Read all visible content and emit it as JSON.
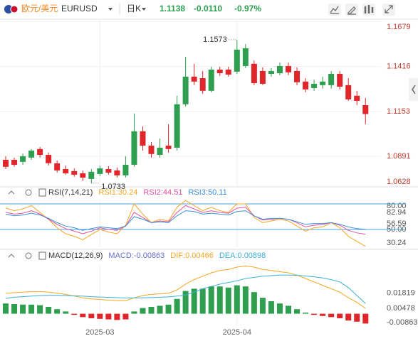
{
  "header": {
    "symbol_cn": "欧元/美元",
    "symbol": "EURUSD",
    "period": "日K",
    "price": "1.1138",
    "change": "-0.0110",
    "change_pct": "-0.97%"
  },
  "chart_data": [
    {
      "type": "candlestick",
      "up_color": "#2e9e4f",
      "down_color": "#e0262a",
      "tick_color": "#c0392b",
      "grid": true,
      "open": [
        1.087,
        1.087,
        1.0858,
        1.0883,
        1.0933,
        1.0899,
        1.085,
        1.0816,
        1.0804,
        1.0791,
        1.0758,
        1.0787,
        1.0816,
        1.0808,
        1.0779,
        1.0841,
        1.1037,
        1.0953,
        1.0899,
        1.0953,
        1.0941,
        1.1195,
        1.1357,
        1.1348,
        1.1274,
        1.1398,
        1.1398,
        1.1386,
        1.1419,
        1.1432,
        1.139,
        1.1373,
        1.1377,
        1.1419,
        1.139,
        1.1328,
        1.129,
        1.1307,
        1.1307,
        1.1373,
        1.1307,
        1.1245,
        1.119
      ],
      "high": [
        1.0891,
        1.0883,
        1.0908,
        1.0933,
        1.0945,
        1.0912,
        1.0866,
        1.0837,
        1.082,
        1.0808,
        1.0816,
        1.0837,
        1.0833,
        1.0825,
        1.0891,
        1.1141,
        1.1066,
        1.0974,
        1.0995,
        1.1078,
        1.1245,
        1.1473,
        1.1432,
        1.139,
        1.1415,
        1.1415,
        1.1415,
        1.1573,
        1.1548,
        1.1452,
        1.1411,
        1.1407,
        1.144,
        1.144,
        1.1411,
        1.1348,
        1.134,
        1.1357,
        1.139,
        1.139,
        1.1348,
        1.1274,
        1.1232
      ],
      "low": [
        1.0816,
        1.0829,
        1.0841,
        1.087,
        1.0883,
        1.0837,
        1.0795,
        1.0783,
        1.0771,
        1.0746,
        1.0733,
        1.0775,
        1.0783,
        1.0766,
        1.0766,
        1.0829,
        1.0924,
        1.0883,
        1.0883,
        1.0912,
        1.0924,
        1.1182,
        1.1307,
        1.1257,
        1.1265,
        1.1361,
        1.1357,
        1.1373,
        1.1407,
        1.1307,
        1.1307,
        1.1357,
        1.1365,
        1.1365,
        1.1307,
        1.1265,
        1.1274,
        1.1286,
        1.1286,
        1.1282,
        1.1215,
        1.119,
        1.1078
      ],
      "close": [
        1.0829,
        1.0841,
        1.0891,
        1.0924,
        1.0899,
        1.085,
        1.0808,
        1.0791,
        1.0783,
        1.0766,
        1.08,
        1.082,
        1.0795,
        1.0779,
        1.0841,
        1.1037,
        1.0953,
        1.0904,
        1.0941,
        1.0933,
        1.1195,
        1.1357,
        1.1328,
        1.1274,
        1.1398,
        1.1377,
        1.1369,
        1.1515,
        1.1523,
        1.1319,
        1.1315,
        1.139,
        1.1419,
        1.1382,
        1.1324,
        1.1282,
        1.1315,
        1.1328,
        1.1373,
        1.1298,
        1.1224,
        1.1215,
        1.1138
      ],
      "ylim": [
        1.0716,
        1.1689
      ],
      "yticks": [
        1.1679,
        1.1416,
        1.1153,
        1.0891,
        1.0628
      ],
      "high_label": 1.1573,
      "low_label": 1.0733
    },
    {
      "type": "line",
      "title": "RSI(7,14,21)",
      "tick_color": "#555555",
      "hline_color": "#4aa3df",
      "series": [
        {
          "name": "RSI1:30.24",
          "color": "#f5a623",
          "values": [
            75,
            72,
            74,
            78,
            70,
            62,
            52,
            45,
            42,
            38,
            44,
            50,
            47,
            45,
            55,
            80,
            68,
            58,
            62,
            60,
            76,
            84,
            78,
            72,
            76,
            72,
            70,
            80,
            80,
            64,
            58,
            60,
            62,
            60,
            54,
            48,
            52,
            53,
            58,
            52,
            42,
            36,
            30.24
          ]
        },
        {
          "name": "RSI2:44.51",
          "color": "#e0529c",
          "values": [
            70,
            68,
            69,
            72,
            68,
            62,
            56,
            51,
            48,
            45,
            48,
            52,
            50,
            49,
            54,
            70,
            64,
            58,
            60,
            59,
            70,
            78,
            74,
            70,
            72,
            70,
            69,
            75,
            76,
            66,
            61,
            62,
            63,
            62,
            58,
            53,
            55,
            56,
            58,
            55,
            49,
            46,
            44.51
          ]
        },
        {
          "name": "RSI3:50.11",
          "color": "#3b8fd9",
          "values": [
            68,
            66,
            67,
            69,
            67,
            63,
            58,
            54,
            52,
            49,
            51,
            53,
            52,
            51,
            54,
            65,
            62,
            58,
            59,
            58,
            66,
            72,
            71,
            68,
            69,
            68,
            67,
            71,
            72,
            66,
            62,
            63,
            63,
            62,
            59,
            56,
            57,
            57,
            58,
            56,
            53,
            51,
            50.11
          ]
        }
      ],
      "ylim": [
        29.2,
        85.8
      ],
      "yticks": [
        {
          "value": 80,
          "label": "80.00"
        },
        82.94,
        56.59,
        {
          "value": 50,
          "label": "50.00"
        },
        30.24
      ],
      "hlines": [
        80,
        50
      ]
    },
    {
      "type": "macd",
      "title": "MACD(12,26,9)",
      "tick_color": "#555555",
      "categories": [
        null,
        null,
        null,
        null,
        null,
        null,
        null,
        null,
        null,
        null,
        null,
        "2025-03",
        null,
        null,
        null,
        null,
        null,
        null,
        null,
        null,
        null,
        null,
        null,
        null,
        null,
        null,
        null,
        "2025-04",
        null,
        null,
        null,
        null,
        null,
        null,
        null,
        null,
        null,
        null,
        null,
        null,
        null,
        null,
        null
      ],
      "series": [
        {
          "name": "MACD:-0.00863",
          "color": "#6c6cd8",
          "up_color": "#2e9e4f",
          "down_color": "#e0262a",
          "values": [
            0.009,
            0.0085,
            0.008,
            0.008,
            0.0075,
            0.006,
            0.004,
            0.002,
            -0.001,
            -0.003,
            -0.004,
            -0.0045,
            -0.005,
            -0.0055,
            -0.005,
            0.002,
            0.005,
            0.006,
            0.007,
            0.008,
            0.013,
            0.02,
            0.022,
            0.022,
            0.024,
            0.024,
            0.023,
            0.025,
            0.024,
            0.019,
            0.014,
            0.011,
            0.009,
            0.007,
            0.004,
            0.001,
            -0.001,
            -0.002,
            -0.003,
            -0.004,
            -0.006,
            -0.007,
            -0.00863
          ]
        },
        {
          "name": "DIF:0.00466",
          "color": "#f5a623",
          "values": [
            0.018,
            0.0185,
            0.019,
            0.0195,
            0.0195,
            0.019,
            0.018,
            0.017,
            0.0155,
            0.014,
            0.013,
            0.0125,
            0.012,
            0.0115,
            0.0115,
            0.014,
            0.016,
            0.017,
            0.0175,
            0.018,
            0.021,
            0.026,
            0.03,
            0.033,
            0.036,
            0.038,
            0.039,
            0.041,
            0.042,
            0.041,
            0.039,
            0.038,
            0.037,
            0.036,
            0.034,
            0.031,
            0.028,
            0.025,
            0.022,
            0.019,
            0.014,
            0.01,
            0.00466
          ]
        },
        {
          "name": "DEA:0.00898",
          "color": "#3bb0d9",
          "values": [
            0.0135,
            0.0145,
            0.015,
            0.0155,
            0.016,
            0.0162,
            0.0162,
            0.016,
            0.0158,
            0.0155,
            0.015,
            0.0147,
            0.0144,
            0.0141,
            0.0139,
            0.0139,
            0.014,
            0.0142,
            0.0145,
            0.0148,
            0.0155,
            0.0165,
            0.019,
            0.022,
            0.024,
            0.026,
            0.0275,
            0.029,
            0.031,
            0.032,
            0.033,
            0.0335,
            0.034,
            0.034,
            0.0338,
            0.0332,
            0.0325,
            0.0315,
            0.03,
            0.028,
            0.023,
            0.016,
            0.00898
          ]
        }
      ],
      "ylim": [
        -0.0115,
        0.0435
      ],
      "yticks": [
        0.01819,
        0.00478,
        -0.00863
      ]
    }
  ]
}
